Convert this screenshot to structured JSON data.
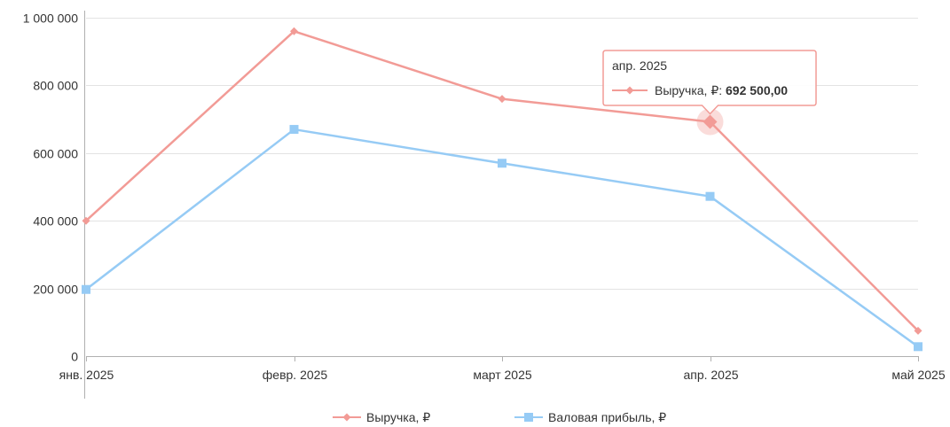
{
  "chart_data": {
    "type": "line",
    "categories": [
      "янв. 2025",
      "февр. 2025",
      "март 2025",
      "апр. 2025",
      "май 2025"
    ],
    "series": [
      {
        "name": "Выручка, ₽",
        "color": "#f29b96",
        "marker": "diamond",
        "values": [
          400000,
          960000,
          760000,
          692500,
          75000
        ]
      },
      {
        "name": "Валовая прибыль, ₽",
        "color": "#96cbf5",
        "marker": "square",
        "values": [
          197000,
          670000,
          570000,
          472000,
          28000
        ]
      }
    ],
    "ylim": [
      0,
      1000000
    ],
    "yticks": [
      {
        "value": 0,
        "label": "0"
      },
      {
        "value": 200000,
        "label": "200 000"
      },
      {
        "value": 400000,
        "label": "400 000"
      },
      {
        "value": 600000,
        "label": "600 000"
      },
      {
        "value": 800000,
        "label": "800 000"
      },
      {
        "value": 1000000,
        "label": "1 000 000"
      }
    ],
    "grid": true,
    "legend": "bottom-center",
    "tooltip": {
      "category_index": 3,
      "series_index": 0,
      "title": "апр. 2025",
      "series_label": "Выручка, ₽: ",
      "value_label": "692 500,00"
    }
  }
}
